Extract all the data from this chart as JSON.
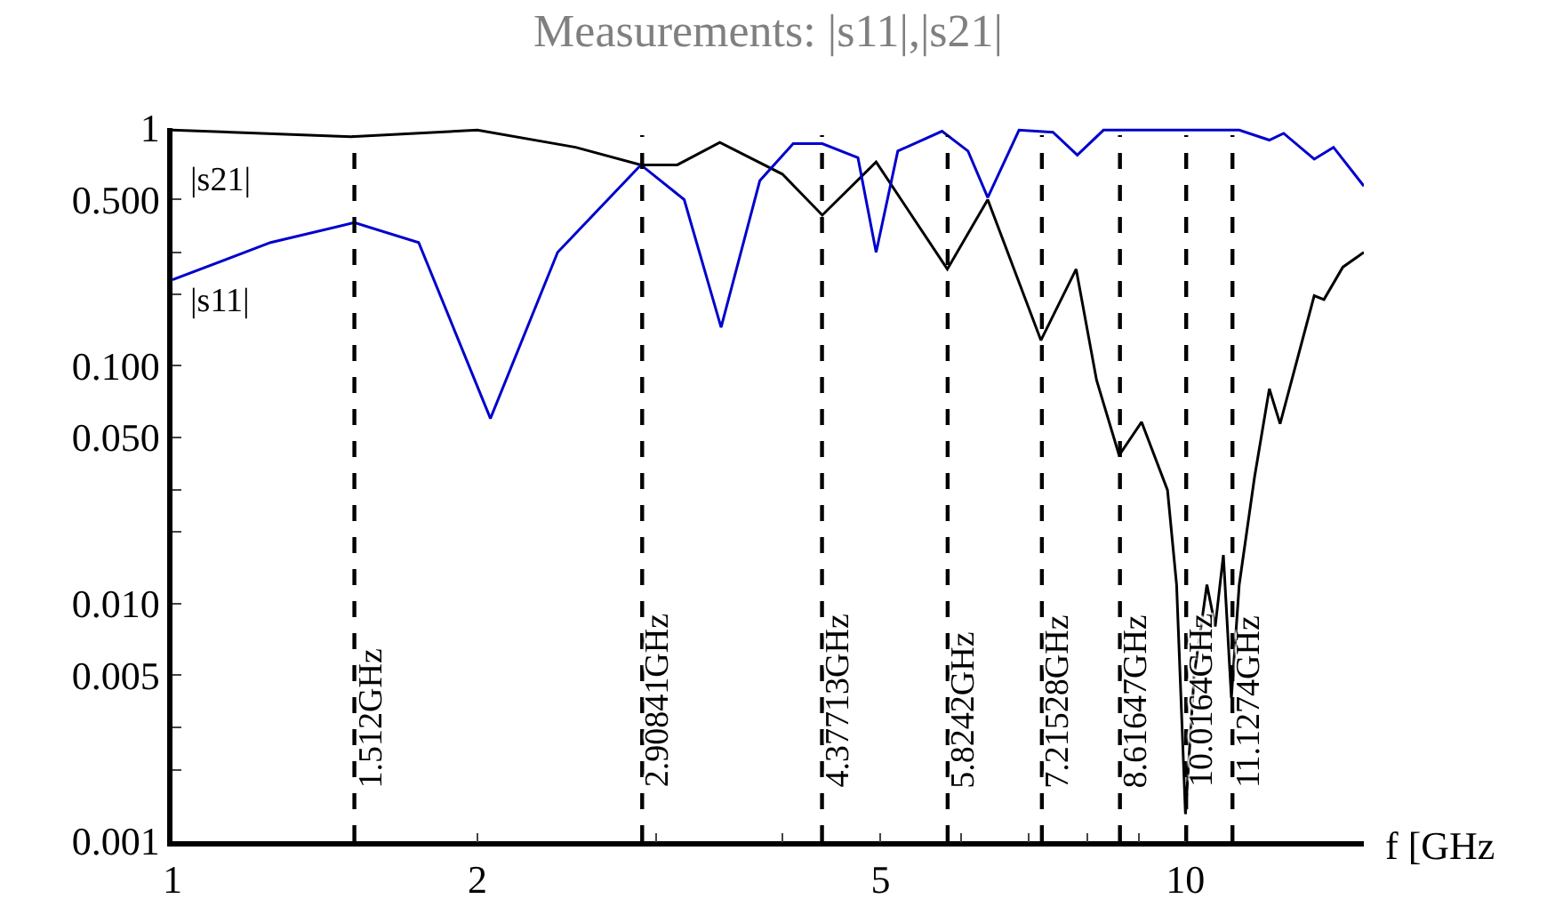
{
  "chart_data": {
    "type": "line",
    "title": "Measurements: |s11|,|s21|",
    "xlabel": "f [GHz",
    "log": "xy",
    "grid": false,
    "legend": false,
    "marker": "none",
    "line_style": "solid",
    "xlim": [
      1,
      15
    ],
    "ylim": [
      0.001,
      1
    ],
    "xticks": [
      1,
      2,
      {
        "value": 3,
        "label": null
      },
      {
        "value": 4,
        "label": null
      },
      5,
      {
        "value": 6,
        "label": null
      },
      {
        "value": 7,
        "label": null
      },
      {
        "value": 8,
        "label": null
      },
      {
        "value": 9,
        "label": null
      },
      10
    ],
    "yticks": [
      {
        "value": 0.001,
        "label": "0.001"
      },
      {
        "value": 0.002,
        "label": null
      },
      {
        "value": 0.003,
        "label": null
      },
      {
        "value": 0.005,
        "label": "0.005"
      },
      {
        "value": 0.01,
        "label": "0.010"
      },
      {
        "value": 0.02,
        "label": null
      },
      {
        "value": 0.03,
        "label": null
      },
      {
        "value": 0.05,
        "label": "0.050"
      },
      {
        "value": 0.1,
        "label": "0.100"
      },
      {
        "value": 0.2,
        "label": null
      },
      {
        "value": 0.3,
        "label": null
      },
      {
        "value": 0.5,
        "label": "0.500"
      },
      {
        "value": 1,
        "label": "1"
      }
    ],
    "series": [
      {
        "name": "|s21|",
        "color": "#000000",
        "x": [
          1,
          1.5,
          2.0,
          2.5,
          2.9,
          3.15,
          3.47,
          4.0,
          4.38,
          4.95,
          5.82,
          6.38,
          7.2,
          7.8,
          8.17,
          8.6,
          9.05,
          9.6,
          9.8,
          10.0,
          10.2,
          10.5,
          10.7,
          10.9,
          11.1,
          11.3,
          11.7,
          12.1,
          12.4,
          13.4,
          13.7,
          14.3,
          15
        ],
        "values": [
          0.98,
          0.92,
          0.98,
          0.83,
          0.7,
          0.7,
          0.87,
          0.64,
          0.43,
          0.72,
          0.255,
          0.5,
          0.128,
          0.255,
          0.087,
          0.042,
          0.058,
          0.03,
          0.012,
          0.0013,
          0.005,
          0.012,
          0.008,
          0.016,
          0.004,
          0.012,
          0.034,
          0.08,
          0.057,
          0.197,
          0.19,
          0.26,
          0.3
        ]
      },
      {
        "name": "|s11|",
        "color": "#0000cc",
        "x": [
          1,
          1.25,
          1.512,
          1.75,
          2.06,
          2.4,
          2.9,
          3.2,
          3.48,
          3.8,
          4.1,
          4.38,
          4.75,
          4.95,
          5.2,
          5.75,
          6.1,
          6.38,
          6.85,
          7.4,
          7.82,
          8.3,
          9.5,
          11.3,
          12.1,
          12.5,
          13.4,
          14.0,
          15
        ],
        "values": [
          0.23,
          0.33,
          0.4,
          0.33,
          0.06,
          0.3,
          0.7,
          0.5,
          0.145,
          0.6,
          0.86,
          0.86,
          0.75,
          0.3,
          0.8,
          0.97,
          0.8,
          0.51,
          0.98,
          0.96,
          0.77,
          0.98,
          0.98,
          0.98,
          0.89,
          0.95,
          0.74,
          0.83,
          0.57
        ]
      }
    ],
    "ref_lines": [
      {
        "axis": "x",
        "value": 1.512,
        "label": "1.512GHz",
        "line_style": "dashed",
        "color": "#000000"
      },
      {
        "axis": "x",
        "value": 2.90841,
        "label": "2.90841GHz",
        "line_style": "dashed",
        "color": "#000000"
      },
      {
        "axis": "x",
        "value": 4.37713,
        "label": "4.37713GHz",
        "line_style": "dashed",
        "color": "#000000"
      },
      {
        "axis": "x",
        "value": 5.8242,
        "label": "5.8242GHz",
        "line_style": "dashed",
        "color": "#000000"
      },
      {
        "axis": "x",
        "value": 7.21528,
        "label": "7.21528GHz",
        "line_style": "dashed",
        "color": "#000000"
      },
      {
        "axis": "x",
        "value": 8.61647,
        "label": "8.61647GHz",
        "line_style": "dashed",
        "color": "#000000"
      },
      {
        "axis": "x",
        "value": 10.0164,
        "label": "10.0164GHz",
        "line_style": "dashed",
        "color": "#000000"
      },
      {
        "axis": "x",
        "value": 11.1274,
        "label": "11.1274GHz",
        "line_style": "dashed",
        "color": "#000000"
      }
    ]
  }
}
